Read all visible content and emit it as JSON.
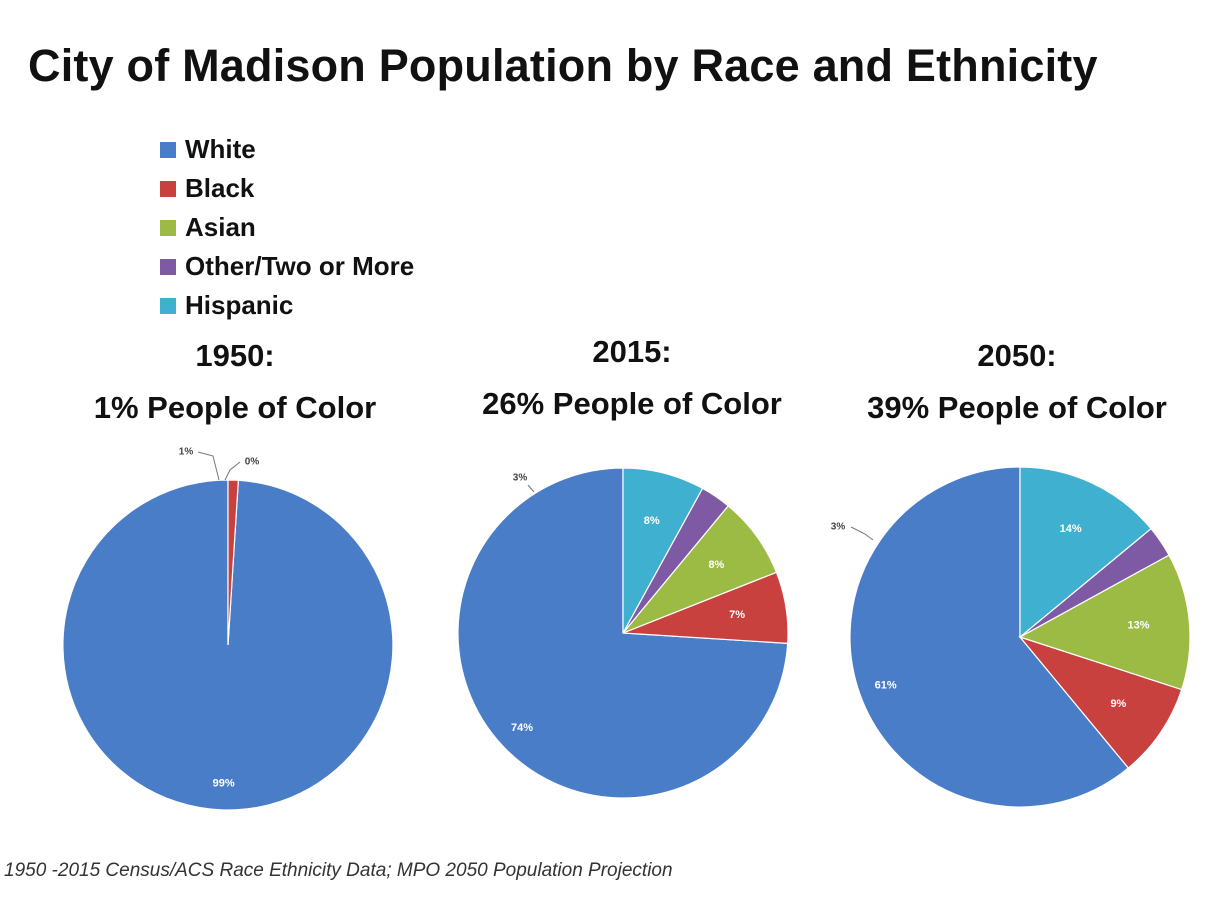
{
  "title": "City of Madison Population by Race and Ethnicity",
  "legend": [
    {
      "label": "White",
      "color": "#4a7dc8"
    },
    {
      "label": "Black",
      "color": "#c9413f"
    },
    {
      "label": "Asian",
      "color": "#9bbb45"
    },
    {
      "label": "Other/Two or More",
      "color": "#7f5aa4"
    },
    {
      "label": "Hispanic",
      "color": "#3fb0d0"
    }
  ],
  "source": "1950 -2015 Census/ACS Race Ethnicity Data; MPO 2050 Population Projection",
  "chart_data": [
    {
      "type": "pie",
      "title": "1950:",
      "subtitle": "1% People of Color",
      "categories": [
        "White",
        "Black",
        "Asian",
        "Other/Two or More",
        "Hispanic"
      ],
      "values": [
        99,
        1,
        0,
        0,
        0
      ],
      "labels": [
        "99%",
        "1%",
        "0%",
        "",
        ""
      ]
    },
    {
      "type": "pie",
      "title": "2015:",
      "subtitle": "26% People of Color",
      "categories": [
        "White",
        "Black",
        "Asian",
        "Other/Two or More",
        "Hispanic"
      ],
      "values": [
        74,
        7,
        8,
        3,
        8
      ],
      "labels": [
        "74%",
        "7%",
        "8%",
        "3%",
        "8%"
      ]
    },
    {
      "type": "pie",
      "title": "2050:",
      "subtitle": "39% People of Color",
      "categories": [
        "White",
        "Black",
        "Asian",
        "Other/Two or More",
        "Hispanic"
      ],
      "values": [
        61,
        9,
        13,
        3,
        14
      ],
      "labels": [
        "61%",
        "9%",
        "13%",
        "3%",
        "14%"
      ]
    }
  ]
}
